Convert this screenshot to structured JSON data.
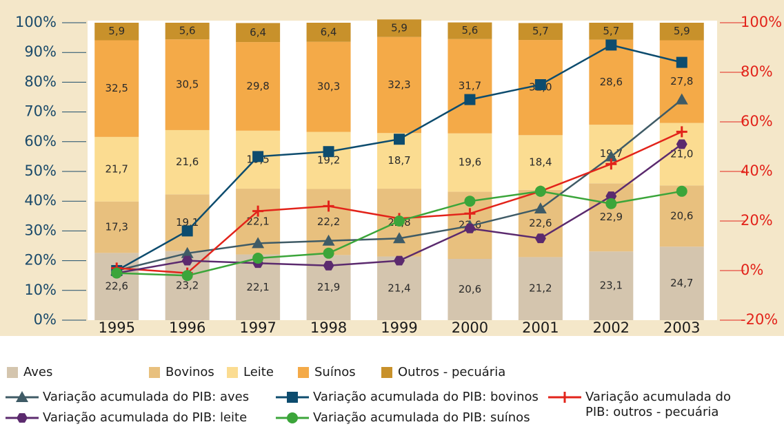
{
  "chart_data": {
    "type": "bar",
    "stacked": true,
    "categories": [
      "1995",
      "1996",
      "1997",
      "1998",
      "1999",
      "2000",
      "2001",
      "2002",
      "2003"
    ],
    "ylim": [
      0,
      100
    ],
    "yticks": [
      {
        "value": 0,
        "label": "0%"
      },
      {
        "value": 10,
        "label": "10%"
      },
      {
        "value": 20,
        "label": "20%"
      },
      {
        "value": 30,
        "label": "30%"
      },
      {
        "value": 40,
        "label": "40%"
      },
      {
        "value": 50,
        "label": "50%"
      },
      {
        "value": 60,
        "label": "60%"
      },
      {
        "value": 70,
        "label": "70%"
      },
      {
        "value": 80,
        "label": "80%"
      },
      {
        "value": 90,
        "label": "90%"
      },
      {
        "value": 100,
        "label": "100%"
      }
    ],
    "y2lim": [
      -20,
      100
    ],
    "y2ticks": [
      {
        "value": -20,
        "label": "-20%"
      },
      {
        "value": 0,
        "label": "0%"
      },
      {
        "value": 20,
        "label": "20%"
      },
      {
        "value": 40,
        "label": "40%"
      },
      {
        "value": 60,
        "label": "60%"
      },
      {
        "value": 80,
        "label": "80%"
      },
      {
        "value": 100,
        "label": "100%"
      }
    ],
    "series": [
      {
        "name": "Aves",
        "type": "bar",
        "color": "#d4c5ae",
        "values": [
          22.6,
          23.2,
          22.1,
          21.9,
          21.4,
          20.6,
          21.2,
          23.1,
          24.7
        ],
        "value_labels": [
          "22,6",
          "23,2",
          "22,1",
          "21,9",
          "21,4",
          "20,6",
          "21,2",
          "23,1",
          "24,7"
        ]
      },
      {
        "name": "Bovinos",
        "type": "bar",
        "color": "#e8c07e",
        "values": [
          17.3,
          19.1,
          22.1,
          22.2,
          22.8,
          22.6,
          22.6,
          22.9,
          20.6
        ],
        "value_labels": [
          "17,3",
          "19,1",
          "22,1",
          "22,2",
          "22,8",
          "22,6",
          "22,6",
          "22,9",
          "20,6"
        ]
      },
      {
        "name": "Leite",
        "type": "bar",
        "color": "#fbdc91",
        "values": [
          21.7,
          21.6,
          19.5,
          19.2,
          18.7,
          19.6,
          18.4,
          19.7,
          21.0
        ],
        "value_labels": [
          "21,7",
          "21,6",
          "19,5",
          "19,2",
          "18,7",
          "19,6",
          "18,4",
          "19,7",
          "21,0"
        ]
      },
      {
        "name": "Suínos",
        "type": "bar",
        "color": "#f4aa48",
        "values": [
          32.5,
          30.5,
          29.8,
          30.3,
          32.3,
          31.7,
          32.0,
          28.6,
          27.8
        ],
        "value_labels": [
          "32,5",
          "30,5",
          "29,8",
          "30,3",
          "32,3",
          "31,7",
          "32,0",
          "28,6",
          "27,8"
        ]
      },
      {
        "name": "Outros - pecuária",
        "type": "bar",
        "color": "#c8912b",
        "values": [
          5.9,
          5.6,
          6.4,
          6.4,
          5.9,
          5.6,
          5.7,
          5.7,
          5.9
        ],
        "value_labels": [
          "5,9",
          "5,6",
          "6,4",
          "6,4",
          "5,9",
          "5,6",
          "5,7",
          "5,7",
          "5,9"
        ]
      },
      {
        "name": "Variação acumulada do PIB: aves",
        "type": "line",
        "axis": "y2",
        "marker": "triangle",
        "color": "#3f5b66",
        "values": [
          0,
          7,
          11,
          12,
          13,
          18,
          25,
          46,
          69
        ]
      },
      {
        "name": "Variação acumulada do PIB: bovinos",
        "type": "line",
        "axis": "y2",
        "marker": "square",
        "color": "#0d4c6e",
        "values": [
          0,
          16,
          46,
          48,
          53,
          69,
          75,
          91,
          84
        ]
      },
      {
        "name": "Variação acumulada do PIB: outros - pecuária",
        "type": "line",
        "axis": "y2",
        "marker": "plus",
        "color": "#e2231a",
        "values": [
          1,
          -1,
          24,
          26,
          21,
          23,
          32,
          43,
          56
        ]
      },
      {
        "name": "Variação acumulada do PIB: leite",
        "type": "line",
        "axis": "y2",
        "marker": "hexagon",
        "color": "#5b2a6e",
        "values": [
          -1,
          4,
          3,
          2,
          4,
          17,
          13,
          30,
          51
        ]
      },
      {
        "name": "Variação acumulada do PIB: suínos",
        "type": "line",
        "axis": "y2",
        "marker": "circle",
        "color": "#3ba53a",
        "values": [
          -1,
          -2,
          5,
          7,
          20,
          28,
          32,
          27,
          32
        ]
      }
    ]
  }
}
